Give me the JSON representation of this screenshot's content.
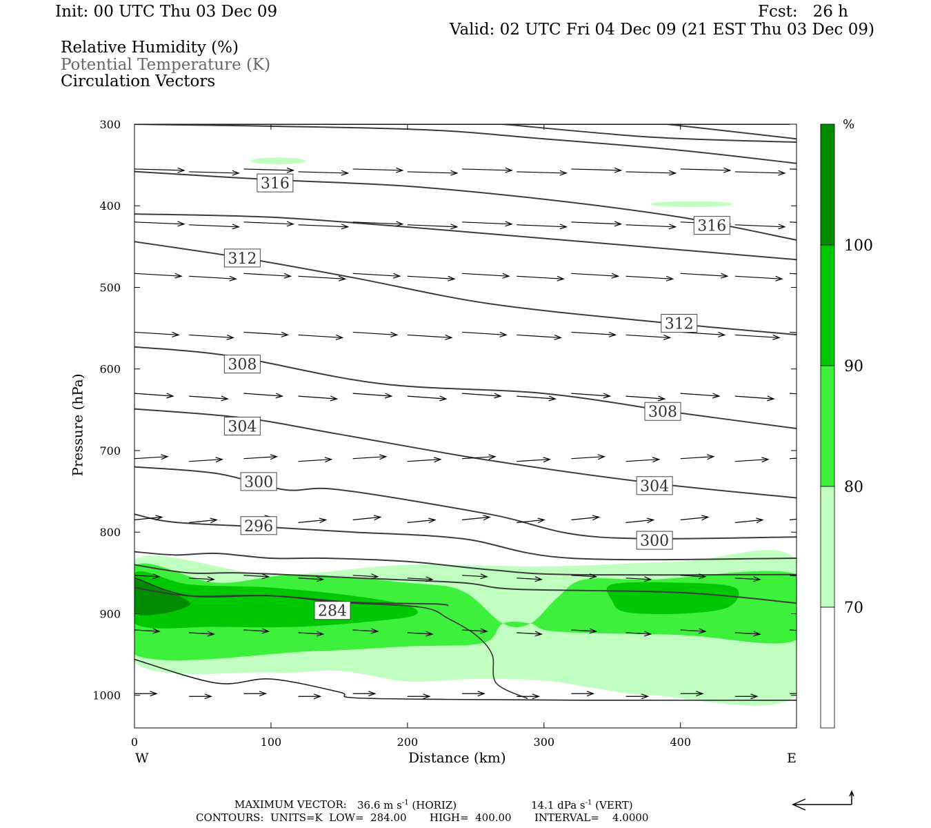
{
  "header": {
    "init": "Init: 00 UTC Thu 03 Dec 09",
    "fcst": "Fcst:   26 h",
    "valid": "Valid: 02 UTC Fri 04 Dec 09 (21 EST Thu 03 Dec 09)"
  },
  "legend_lines": {
    "rh": "Relative Humidity (%)",
    "theta": "Potential Temperature (K)",
    "vectors": "Circulation Vectors"
  },
  "footer": {
    "max_vector_label": "MAXIMUM VECTOR:",
    "max_vector_horiz": "36.6 m s",
    "horiz_sup": "-1",
    "horiz_tag": "(HORIZ)",
    "max_vector_vert": "14.1 dPa s",
    "vert_sup": "-1",
    "vert_tag": "(VERT)",
    "contours": "CONTOURS:  UNITS=K  LOW=  284.00       HIGH=  400.00       INTERVAL=    4.0000"
  },
  "colors": {
    "rh_70_80": "#c0ffc0",
    "rh_80_90": "#3cf03c",
    "rh_90_100": "#00c800",
    "rh_100": "#008c00",
    "contour": "#3c3c3c"
  },
  "chart_data": {
    "type": "heatmap",
    "xlabel": "Distance (km)",
    "ylabel": "Pressure (hPa)",
    "xlim": [
      0,
      485
    ],
    "ylim": [
      1040,
      300
    ],
    "x_ticks": [
      "0",
      "100",
      "200",
      "300",
      "400"
    ],
    "y_ticks": [
      "300",
      "400",
      "500",
      "600",
      "700",
      "800",
      "900",
      "1000"
    ],
    "x_end_labels": {
      "left": "W",
      "right": "E"
    },
    "colorbar": {
      "unit": "%",
      "levels": [
        "70",
        "80",
        "90",
        "100"
      ]
    },
    "contour_labels": [
      {
        "text": "316",
        "x": 103,
        "p": 372
      },
      {
        "text": "316",
        "x": 423,
        "p": 424
      },
      {
        "text": "312",
        "x": 79,
        "p": 464
      },
      {
        "text": "312",
        "x": 399,
        "p": 544
      },
      {
        "text": "308",
        "x": 79,
        "p": 594
      },
      {
        "text": "308",
        "x": 387,
        "p": 652
      },
      {
        "text": "304",
        "x": 79,
        "p": 670
      },
      {
        "text": "304",
        "x": 381,
        "p": 743
      },
      {
        "text": "300",
        "x": 91,
        "p": 738
      },
      {
        "text": "300",
        "x": 381,
        "p": 810
      },
      {
        "text": "296",
        "x": 91,
        "p": 792
      },
      {
        "text": "284",
        "x": 145,
        "p": 896
      }
    ],
    "isentropes": [
      [
        [
          0,
          300
        ],
        [
          120,
          300
        ],
        [
          480,
          300
        ]
      ],
      [
        [
          270,
          300
        ],
        [
          380,
          316
        ],
        [
          485,
          322
        ]
      ],
      [
        [
          390,
          300
        ],
        [
          485,
          318
        ]
      ],
      [
        [
          0,
          300
        ],
        [
          200,
          306
        ],
        [
          300,
          318
        ],
        [
          400,
          332
        ],
        [
          485,
          348
        ]
      ],
      [
        [
          0,
          358
        ],
        [
          100,
          368
        ],
        [
          200,
          376
        ],
        [
          300,
          392
        ],
        [
          400,
          414
        ],
        [
          485,
          442
        ]
      ],
      [
        [
          0,
          410
        ],
        [
          100,
          414
        ],
        [
          200,
          426
        ],
        [
          300,
          440
        ],
        [
          400,
          454
        ],
        [
          485,
          466
        ]
      ],
      [
        [
          0,
          444
        ],
        [
          80,
          464
        ],
        [
          160,
          488
        ],
        [
          260,
          520
        ],
        [
          380,
          542
        ],
        [
          485,
          558
        ]
      ],
      [
        [
          0,
          573
        ],
        [
          70,
          584
        ],
        [
          180,
          618
        ],
        [
          300,
          630
        ],
        [
          400,
          654
        ],
        [
          485,
          673
        ]
      ],
      [
        [
          0,
          649
        ],
        [
          80,
          660
        ],
        [
          150,
          680
        ],
        [
          260,
          712
        ],
        [
          380,
          740
        ],
        [
          485,
          758
        ]
      ],
      [
        [
          0,
          720
        ],
        [
          60,
          728
        ],
        [
          110,
          748
        ],
        [
          150,
          748
        ],
        [
          260,
          778
        ],
        [
          340,
          806
        ],
        [
          485,
          806
        ]
      ],
      [
        [
          0,
          778
        ],
        [
          30,
          788
        ],
        [
          100,
          794
        ],
        [
          140,
          798
        ],
        [
          160,
          800
        ],
        [
          240,
          808
        ],
        [
          320,
          832
        ],
        [
          485,
          832
        ]
      ],
      [
        [
          0,
          824
        ],
        [
          30,
          828
        ],
        [
          60,
          826
        ],
        [
          100,
          832
        ],
        [
          140,
          832
        ],
        [
          200,
          836
        ],
        [
          260,
          846
        ],
        [
          320,
          852
        ],
        [
          485,
          852
        ]
      ],
      [
        [
          0,
          840
        ],
        [
          40,
          850
        ],
        [
          80,
          850
        ],
        [
          160,
          856
        ],
        [
          240,
          862
        ],
        [
          280,
          870
        ],
        [
          400,
          874
        ],
        [
          485,
          887
        ]
      ],
      [
        [
          0,
          868
        ],
        [
          40,
          878
        ],
        [
          100,
          878
        ],
        [
          160,
          886
        ],
        [
          220,
          888
        ],
        [
          230,
          890
        ]
      ]
    ],
    "low_contour": [
      [
        0,
        956
      ],
      [
        60,
        985
      ],
      [
        100,
        980
      ],
      [
        150,
        996
      ],
      [
        160,
        1003
      ],
      [
        230,
        1005
      ],
      [
        330,
        1006
      ],
      [
        485,
        1006
      ]
    ],
    "dark_line": [
      [
        0,
        856
      ],
      [
        40,
        878
      ],
      [
        100,
        878
      ],
      [
        150,
        886
      ],
      [
        210,
        892
      ],
      [
        230,
        906
      ],
      [
        250,
        926
      ],
      [
        262,
        950
      ],
      [
        265,
        985
      ],
      [
        288,
        1004
      ]
    ],
    "rh_regions": {
      "rh_70_80": [
        [
          [
            0,
            834
          ],
          [
            100,
            852
          ],
          [
            200,
            840
          ],
          [
            300,
            842
          ],
          [
            400,
            836
          ],
          [
            485,
            834
          ],
          [
            485,
            1000
          ],
          [
            380,
            1000
          ],
          [
            340,
            992
          ],
          [
            300,
            982
          ],
          [
            250,
            980
          ],
          [
            200,
            983
          ],
          [
            150,
            970
          ],
          [
            100,
            972
          ],
          [
            0,
            960
          ]
        ]
      ],
      "rh_80_90": [
        [
          [
            0,
            842
          ],
          [
            60,
            862
          ],
          [
            120,
            852
          ],
          [
            200,
            862
          ],
          [
            240,
            872
          ],
          [
            270,
            912
          ],
          [
            290,
            912
          ],
          [
            310,
            880
          ],
          [
            330,
            858
          ],
          [
            380,
            858
          ],
          [
            485,
            852
          ],
          [
            485,
            932
          ],
          [
            400,
            926
          ],
          [
            310,
            922
          ],
          [
            290,
            912
          ],
          [
            270,
            912
          ],
          [
            255,
            936
          ],
          [
            200,
            940
          ],
          [
            130,
            946
          ],
          [
            0,
            950
          ]
        ]
      ],
      "rh_90_100": [
        [
          [
            0,
            850
          ],
          [
            40,
            864
          ],
          [
            100,
            868
          ],
          [
            160,
            878
          ],
          [
            200,
            890
          ],
          [
            205,
            902
          ],
          [
            170,
            910
          ],
          [
            120,
            916
          ],
          [
            60,
            916
          ],
          [
            0,
            912
          ]
        ],
        [
          [
            350,
            864
          ],
          [
            400,
            862
          ],
          [
            440,
            868
          ],
          [
            435,
            892
          ],
          [
            400,
            900
          ],
          [
            360,
            898
          ],
          [
            350,
            884
          ]
        ]
      ],
      "rh_100": [
        [
          [
            0,
            858
          ],
          [
            20,
            870
          ],
          [
            35,
            880
          ],
          [
            40,
            890
          ],
          [
            20,
            900
          ],
          [
            0,
            898
          ]
        ]
      ]
    },
    "vector_rows": [
      {
        "p": 360,
        "x": [
          0,
          40,
          80,
          120,
          160,
          200,
          240,
          280,
          320,
          360,
          400,
          440,
          480
        ],
        "dx": 36,
        "dp": 2
      },
      {
        "p": 425,
        "x": [
          0,
          40,
          80,
          120,
          160,
          200,
          240,
          280,
          320,
          360,
          400,
          440,
          480
        ],
        "dx": 36,
        "dp": 3
      },
      {
        "p": 488,
        "x": [
          0,
          40,
          80,
          120,
          160,
          200,
          240,
          280,
          320,
          360,
          400,
          440,
          480
        ],
        "dx": 34,
        "dp": 4
      },
      {
        "p": 560,
        "x": [
          0,
          40,
          80,
          120,
          160,
          200,
          240,
          280,
          320,
          360,
          400,
          440,
          480
        ],
        "dx": 32,
        "dp": 4
      },
      {
        "p": 635,
        "x": [
          0,
          40,
          80,
          120,
          160,
          200,
          240,
          280,
          320,
          360,
          400,
          440,
          480
        ],
        "dx": 28,
        "dp": 4
      },
      {
        "p": 715,
        "x": [
          0,
          40,
          80,
          120,
          160,
          200,
          240,
          280,
          320,
          360,
          400,
          440,
          480
        ],
        "dx": 24,
        "dp": -3
      },
      {
        "p": 790,
        "x": [
          0,
          40,
          80,
          120,
          160,
          200,
          240,
          280,
          320,
          360,
          400,
          440,
          480
        ],
        "dx": 20,
        "dp": -4
      },
      {
        "p": 858,
        "x": [
          0,
          40,
          80,
          120,
          160,
          200,
          240,
          280,
          320,
          360,
          400,
          440,
          480
        ],
        "dx": 18,
        "dp": 2
      },
      {
        "p": 925,
        "x": [
          0,
          40,
          80,
          120,
          160,
          200,
          240,
          280,
          320,
          360,
          400,
          440,
          480
        ],
        "dx": 18,
        "dp": 2
      },
      {
        "p": 1003,
        "x": [
          0,
          40,
          80,
          120,
          160,
          200,
          240,
          280,
          320,
          360,
          400,
          440,
          480
        ],
        "dx": 16,
        "dp": 0
      }
    ]
  }
}
